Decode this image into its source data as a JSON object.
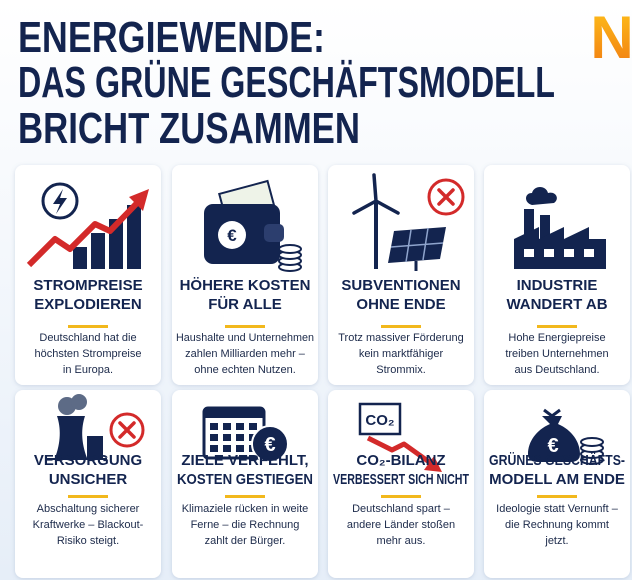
{
  "header": {
    "title": [
      "ENERGIEWENDE:",
      "DAS GRÜNE GESCHÄFTSMODELL",
      "BRICHT ZUSAMMEN"
    ],
    "logo": "N"
  },
  "cards": [
    {
      "title": [
        "STROMPREISE",
        "EXPLODIEREN"
      ],
      "text": [
        "Deutschland hat die",
        "höchsten Strompreise",
        "in Europa."
      ]
    },
    {
      "title": [
        "HÖHERE KOSTEN",
        "FÜR ALLE"
      ],
      "text": [
        "Haushalte und Unternehmen",
        "zahlen Milliarden mehr –",
        "ohne echten Nutzen."
      ],
      "icon_label": "€"
    },
    {
      "title": [
        "SUBVENTIONEN",
        "OHNE ENDE"
      ],
      "text": [
        "Trotz massiver Förderung",
        "kein marktfähiger",
        "Strommix."
      ]
    },
    {
      "title": [
        "INDUSTRIE",
        "WANDERT AB"
      ],
      "text": [
        "Hohe Energiepreise",
        "treiben Unternehmen",
        "aus Deutschland."
      ]
    },
    {
      "title": [
        "VERSORGUNG",
        "UNSICHER"
      ],
      "text": [
        "Abschaltung sicherer",
        "Kraftwerke – Blackout-",
        "Risiko steigt."
      ]
    },
    {
      "title": [
        "ZIELE VERFEHLT,",
        "KOSTEN GESTIEGEN"
      ],
      "text": [
        "Klimaziele rücken in weite",
        "Ferne – die Rechnung",
        "zahlt der Bürger."
      ],
      "icon_label": "€"
    },
    {
      "title": [
        "CO₂-BILANZ",
        "VERBESSERT SICH NICHT"
      ],
      "text": [
        "Deutschland spart –",
        "andere Länder stoßen",
        "mehr aus."
      ],
      "icon_label": "CO₂"
    },
    {
      "title": [
        "GRÜNES GESCHÄFTS-",
        "MODELL AM ENDE"
      ],
      "text": [
        "Ideologie statt Vernunft –",
        "die Rechnung kommt",
        "jetzt."
      ],
      "icon_label": "€"
    }
  ]
}
